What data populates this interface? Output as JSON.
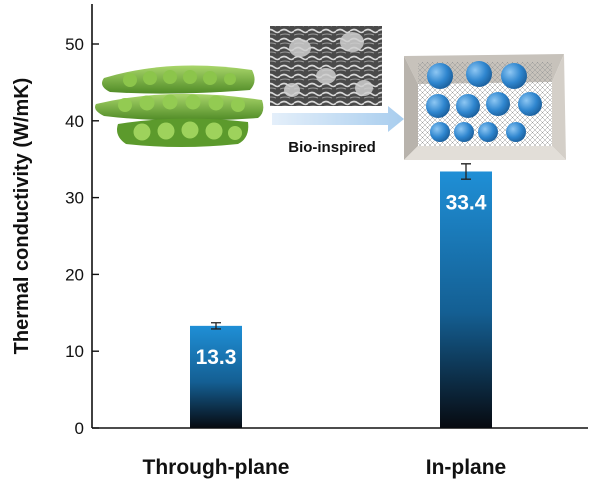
{
  "chart_data": {
    "type": "bar",
    "title": "",
    "xlabel": "",
    "ylabel": "Thermal conductivity (W/mK)",
    "categories": [
      "Through-plane",
      "In-plane"
    ],
    "values": [
      13.3,
      33.4
    ],
    "errors": [
      0.4,
      1.0
    ],
    "value_labels": [
      "13.3",
      "33.4"
    ],
    "ylim": [
      0,
      55
    ],
    "yticks": [
      0,
      10,
      20,
      30,
      40,
      50
    ],
    "grid": false,
    "legend": "none",
    "bar_gradient": [
      "#1f8fd6",
      "#0a0f18"
    ],
    "annotations": [
      {
        "text": "Bio-inspired"
      }
    ]
  }
}
